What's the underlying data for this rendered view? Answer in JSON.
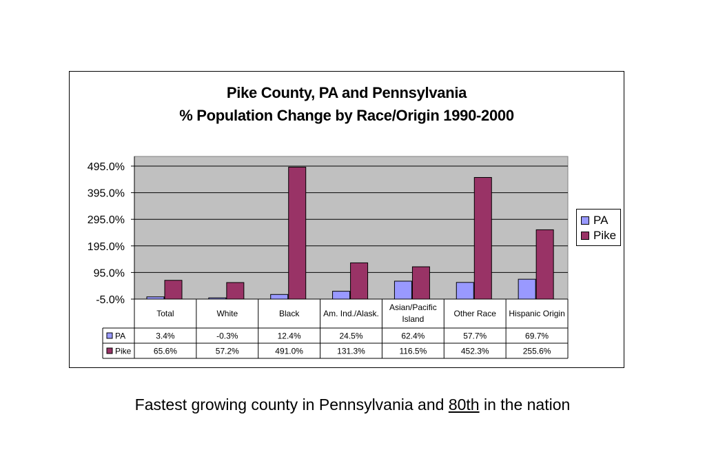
{
  "chart_data": {
    "type": "bar",
    "title": "Pike County, PA and Pennsylvania",
    "subtitle": "% Population Change by Race/Origin 1990-2000",
    "categories": [
      "Total",
      "White",
      "Black",
      "Am. Ind./Alask.",
      "Asian/Pacific Island",
      "Other Race",
      "Hispanic Origin"
    ],
    "series": [
      {
        "name": "PA",
        "color": "#9999ff",
        "values": [
          3.4,
          -0.3,
          12.4,
          24.5,
          62.4,
          57.7,
          69.7
        ],
        "labels": [
          "3.4%",
          "-0.3%",
          "12.4%",
          "24.5%",
          "62.4%",
          "57.7%",
          "69.7%"
        ]
      },
      {
        "name": "Pike",
        "color": "#993366",
        "values": [
          65.6,
          57.2,
          491.0,
          131.3,
          116.5,
          452.3,
          255.6
        ],
        "labels": [
          "65.6%",
          "57.2%",
          "491.0%",
          "131.3%",
          "116.5%",
          "452.3%",
          "255.6%"
        ]
      }
    ],
    "yticks": [
      "495.0%",
      "395.0%",
      "295.0%",
      "195.0%",
      "95.0%",
      "-5.0%"
    ],
    "ytick_values": [
      495,
      395,
      295,
      195,
      95,
      -5
    ],
    "ylim": [
      -5,
      495
    ],
    "xlabel": "",
    "ylabel": "",
    "grid": true,
    "plot_background": "#c0c0c0",
    "legend_position": "right",
    "data_table": true
  },
  "caption": {
    "before": "Fastest growing county in Pennsylvania and ",
    "underlined": "80th",
    "after": " in the nation"
  }
}
